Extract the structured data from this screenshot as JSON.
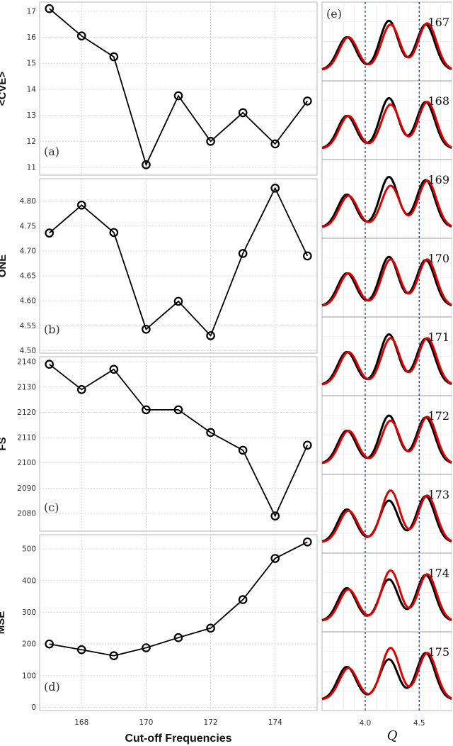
{
  "chart_data": [
    {
      "type": "line",
      "panel_label": "(a)",
      "ylabel": "<CVE>",
      "x": [
        167,
        168,
        169,
        170,
        171,
        172,
        173,
        174,
        175
      ],
      "values": [
        17.1,
        16.05,
        15.25,
        11.1,
        13.75,
        12.0,
        13.1,
        11.9,
        13.55
      ],
      "ylim": [
        10.7,
        17.35
      ],
      "yticks": [
        "11",
        "12",
        "13",
        "14",
        "15",
        "16",
        "17"
      ],
      "grid": true
    },
    {
      "type": "line",
      "panel_label": "(b)",
      "ylabel": "ONE",
      "x": [
        167,
        168,
        169,
        170,
        171,
        172,
        173,
        174,
        175
      ],
      "values": [
        4.736,
        4.792,
        4.737,
        4.543,
        4.599,
        4.53,
        4.695,
        4.826,
        4.69
      ],
      "ylim": [
        4.495,
        4.845
      ],
      "yticks": [
        "4.50",
        "4.55",
        "4.60",
        "4.65",
        "4.70",
        "4.75",
        "4.80"
      ],
      "grid": true
    },
    {
      "type": "line",
      "panel_label": "(c)",
      "ylabel": "FS",
      "x": [
        167,
        168,
        169,
        170,
        171,
        172,
        173,
        174,
        175
      ],
      "values": [
        2139,
        2129,
        2137,
        2121,
        2121,
        2112,
        2105,
        2079,
        2107
      ],
      "ylim": [
        2073,
        2142
      ],
      "yticks": [
        "2080",
        "2090",
        "2100",
        "2110",
        "2120",
        "2130",
        "2140"
      ],
      "grid": true
    },
    {
      "type": "line",
      "panel_label": "(d)",
      "ylabel": "MSE",
      "xlabel": "Cut-off Frequencies",
      "x": [
        167,
        168,
        169,
        170,
        171,
        172,
        173,
        174,
        175
      ],
      "values": [
        200,
        182,
        163,
        188,
        220,
        250,
        340,
        470,
        522
      ],
      "ylim": [
        -10,
        545
      ],
      "yticks": [
        "0",
        "100",
        "200",
        "300",
        "400",
        "500"
      ],
      "xticks": [
        "168",
        "170",
        "172",
        "174"
      ],
      "grid": true
    },
    {
      "type": "line",
      "panel_label": "(e)",
      "xlabel": "Q",
      "xlim": [
        3.6,
        4.8
      ],
      "xticks": [
        "4.0",
        "4.5"
      ],
      "vlines": [
        4.0,
        4.5
      ],
      "series_colors": {
        "black": "#000000",
        "red": "#e00000"
      },
      "rows": [
        {
          "label": "167",
          "black_peaks": [
            0.52,
            0.78,
            0.72
          ],
          "red_peaks": [
            0.52,
            0.72,
            0.74
          ]
        },
        {
          "label": "168",
          "black_peaks": [
            0.52,
            0.8,
            0.74
          ],
          "red_peaks": [
            0.52,
            0.7,
            0.74
          ]
        },
        {
          "label": "169",
          "black_peaks": [
            0.52,
            0.8,
            0.75
          ],
          "red_peaks": [
            0.5,
            0.66,
            0.74
          ]
        },
        {
          "label": "170",
          "black_peaks": [
            0.52,
            0.78,
            0.73
          ],
          "red_peaks": [
            0.52,
            0.74,
            0.74
          ]
        },
        {
          "label": "171",
          "black_peaks": [
            0.52,
            0.8,
            0.73
          ],
          "red_peaks": [
            0.52,
            0.74,
            0.74
          ]
        },
        {
          "label": "172",
          "black_peaks": [
            0.52,
            0.76,
            0.73
          ],
          "red_peaks": [
            0.52,
            0.68,
            0.74
          ]
        },
        {
          "label": "173",
          "black_peaks": [
            0.52,
            0.66,
            0.73
          ],
          "red_peaks": [
            0.5,
            0.82,
            0.74
          ]
        },
        {
          "label": "174",
          "black_peaks": [
            0.52,
            0.66,
            0.73
          ],
          "red_peaks": [
            0.5,
            0.8,
            0.74
          ]
        },
        {
          "label": "175",
          "black_peaks": [
            0.52,
            0.64,
            0.74
          ],
          "red_peaks": [
            0.5,
            0.82,
            0.74
          ]
        }
      ]
    }
  ]
}
